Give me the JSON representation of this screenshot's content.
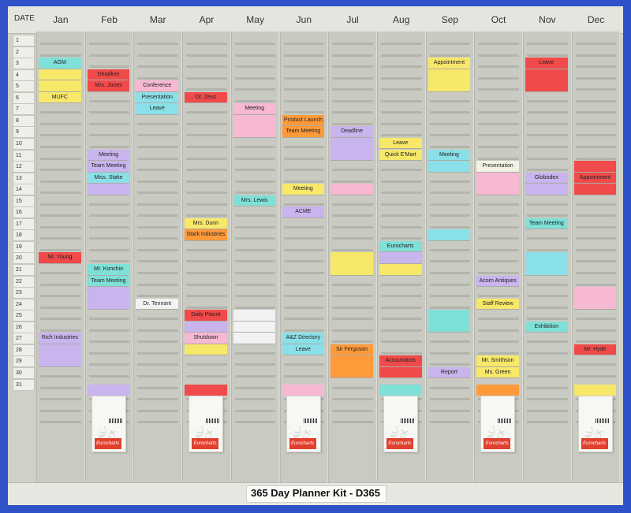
{
  "header": {
    "date_label": "DATE",
    "months": [
      "Jan",
      "Feb",
      "Mar",
      "Apr",
      "May",
      "Jun",
      "Jul",
      "Aug",
      "Sep",
      "Oct",
      "Nov",
      "Dec"
    ]
  },
  "days": [
    "1",
    "2",
    "3",
    "4",
    "5",
    "6",
    "7",
    "8",
    "9",
    "10",
    "11",
    "12",
    "13",
    "14",
    "15",
    "16",
    "17",
    "18",
    "19",
    "20",
    "21",
    "22",
    "23",
    "24",
    "25",
    "26",
    "27",
    "28",
    "29",
    "30",
    "31"
  ],
  "cards": [
    {
      "m": 0,
      "d": 3,
      "text": "AGM",
      "color": "#7fe0d8"
    },
    {
      "m": 0,
      "d": 6,
      "text": "MUFC",
      "color": "#f8e86a"
    },
    {
      "m": 0,
      "d": 20,
      "text": "Mr. Young",
      "color": "#f04a4a"
    },
    {
      "m": 0,
      "d": 27,
      "text": "Rich Industries",
      "color": "#c9b4ee"
    },
    {
      "m": 1,
      "d": 4,
      "text": "Deadline",
      "color": "#f04a4a"
    },
    {
      "m": 1,
      "d": 5,
      "text": "Mrs. Jones",
      "color": "#f04a4a"
    },
    {
      "m": 1,
      "d": 11,
      "text": "Meeting",
      "color": "#c9b4ee"
    },
    {
      "m": 1,
      "d": 12,
      "text": "Team Meeting",
      "color": "#c9b4ee"
    },
    {
      "m": 1,
      "d": 13,
      "text": "Miss. Stake",
      "color": "#8ae0e8"
    },
    {
      "m": 1,
      "d": 21,
      "text": "Mr. Konchio",
      "color": "#7fe0d8"
    },
    {
      "m": 1,
      "d": 22,
      "text": "Team Meeting",
      "color": "#7fe0d8"
    },
    {
      "m": 2,
      "d": 5,
      "text": "Conference",
      "color": "#f7b8d4"
    },
    {
      "m": 2,
      "d": 6,
      "text": "Presentation",
      "color": "#8ae0e8"
    },
    {
      "m": 2,
      "d": 7,
      "text": "Leave",
      "color": "#8ae0e8"
    },
    {
      "m": 2,
      "d": 24,
      "text": "Dr. Tennant",
      "color": "#f2f2f2"
    },
    {
      "m": 3,
      "d": 6,
      "text": "Dr. Zeus",
      "color": "#f04a4a"
    },
    {
      "m": 3,
      "d": 17,
      "text": "Mrs. Dunn",
      "color": "#f8e86a"
    },
    {
      "m": 3,
      "d": 18,
      "text": "Stark Industries",
      "color": "#ff9a3a"
    },
    {
      "m": 3,
      "d": 25,
      "text": "Daily Planet",
      "color": "#f04a4a"
    },
    {
      "m": 3,
      "d": 27,
      "text": "Shutdown",
      "color": "#f7b8d4"
    },
    {
      "m": 4,
      "d": 7,
      "text": "Meeting",
      "color": "#f7b8d4"
    },
    {
      "m": 4,
      "d": 15,
      "text": "Mrs. Lewis",
      "color": "#7fe0d8"
    },
    {
      "m": 5,
      "d": 8,
      "text": "Product Launch",
      "color": "#ff9a3a"
    },
    {
      "m": 5,
      "d": 9,
      "text": "Team Meeting",
      "color": "#ff9a3a"
    },
    {
      "m": 5,
      "d": 14,
      "text": "Meeting",
      "color": "#f8e86a"
    },
    {
      "m": 5,
      "d": 16,
      "text": "ACME",
      "color": "#c9b4ee"
    },
    {
      "m": 5,
      "d": 27,
      "text": "A&Z Directory",
      "color": "#8ae0e8"
    },
    {
      "m": 5,
      "d": 28,
      "text": "Leave",
      "color": "#8ae0e8"
    },
    {
      "m": 6,
      "d": 9,
      "text": "Deadline",
      "color": "#c9b4ee"
    },
    {
      "m": 6,
      "d": 28,
      "text": "Sir Ferguson",
      "color": "#ff9a3a"
    },
    {
      "m": 7,
      "d": 10,
      "text": "Leave",
      "color": "#f8e86a"
    },
    {
      "m": 7,
      "d": 11,
      "text": "Quick E'Mart",
      "color": "#f8e86a"
    },
    {
      "m": 7,
      "d": 19,
      "text": "Eurocharts",
      "color": "#7fe0d8"
    },
    {
      "m": 7,
      "d": 29,
      "text": "Accountants",
      "color": "#f04a4a"
    },
    {
      "m": 8,
      "d": 3,
      "text": "Appointment",
      "color": "#f8e86a"
    },
    {
      "m": 8,
      "d": 11,
      "text": "Meeting",
      "color": "#8ae0e8"
    },
    {
      "m": 8,
      "d": 30,
      "text": "Report",
      "color": "#c9b4ee"
    },
    {
      "m": 9,
      "d": 12,
      "text": "Presentation",
      "color": "#f2f2e4"
    },
    {
      "m": 9,
      "d": 22,
      "text": "Acorn Antiques",
      "color": "#c9b4ee"
    },
    {
      "m": 9,
      "d": 24,
      "text": "Staff Review",
      "color": "#f8e86a"
    },
    {
      "m": 9,
      "d": 29,
      "text": "Mr. Smithson",
      "color": "#f8e86a"
    },
    {
      "m": 9,
      "d": 30,
      "text": "Ms. Green",
      "color": "#f8e86a"
    },
    {
      "m": 10,
      "d": 3,
      "text": "Leave",
      "color": "#f04a4a"
    },
    {
      "m": 10,
      "d": 13,
      "text": "Globodex",
      "color": "#c9b4ee"
    },
    {
      "m": 10,
      "d": 17,
      "text": "Team Meeting",
      "color": "#7fe0d8"
    },
    {
      "m": 10,
      "d": 26,
      "text": "Exhibition",
      "color": "#7fe0d8"
    },
    {
      "m": 11,
      "d": 13,
      "text": "Appointment",
      "color": "#f04a4a"
    },
    {
      "m": 11,
      "d": 28,
      "text": "Mr. Hyde",
      "color": "#f04a4a"
    }
  ],
  "blank_cards": [
    {
      "m": 0,
      "d": 4,
      "span": 1,
      "color": "#f8e86a"
    },
    {
      "m": 0,
      "d": 5,
      "span": 1,
      "color": "#f8e86a"
    },
    {
      "m": 0,
      "d": 28,
      "span": 2,
      "color": "#c9b4ee"
    },
    {
      "m": 1,
      "d": 14,
      "span": 1,
      "color": "#c9b4ee"
    },
    {
      "m": 1,
      "d": 23,
      "span": 2,
      "color": "#c9b4ee"
    },
    {
      "m": 3,
      "d": 26,
      "span": 1,
      "color": "#c9b4ee"
    },
    {
      "m": 3,
      "d": 28,
      "span": 1,
      "color": "#f8e86a"
    },
    {
      "m": 4,
      "d": 8,
      "span": 2,
      "color": "#f7b8d4"
    },
    {
      "m": 4,
      "d": 25,
      "span": 1,
      "color": "#f2f2f2"
    },
    {
      "m": 4,
      "d": 26,
      "span": 1,
      "color": "#f2f2f2"
    },
    {
      "m": 4,
      "d": 27,
      "span": 1,
      "color": "#f2f2f2"
    },
    {
      "m": 6,
      "d": 10,
      "span": 2,
      "color": "#c9b4ee"
    },
    {
      "m": 6,
      "d": 14,
      "span": 1,
      "color": "#f7b8d4"
    },
    {
      "m": 6,
      "d": 20,
      "span": 2,
      "color": "#f8e86a"
    },
    {
      "m": 6,
      "d": 29,
      "span": 2,
      "color": "#ff9a3a"
    },
    {
      "m": 7,
      "d": 20,
      "span": 1,
      "color": "#c9b4ee"
    },
    {
      "m": 7,
      "d": 21,
      "span": 1,
      "color": "#f8e86a"
    },
    {
      "m": 7,
      "d": 30,
      "span": 1,
      "color": "#f04a4a"
    },
    {
      "m": 8,
      "d": 4,
      "span": 2,
      "color": "#f8e86a"
    },
    {
      "m": 8,
      "d": 12,
      "span": 1,
      "color": "#8ae0e8"
    },
    {
      "m": 8,
      "d": 18,
      "span": 1,
      "color": "#8ae0e8"
    },
    {
      "m": 8,
      "d": 25,
      "span": 2,
      "color": "#7fe0d8"
    },
    {
      "m": 9,
      "d": 13,
      "span": 2,
      "color": "#f7b8d4"
    },
    {
      "m": 10,
      "d": 4,
      "span": 2,
      "color": "#f04a4a"
    },
    {
      "m": 10,
      "d": 14,
      "span": 1,
      "color": "#c9b4ee"
    },
    {
      "m": 10,
      "d": 20,
      "span": 2,
      "color": "#8ae0e8"
    },
    {
      "m": 11,
      "d": 12,
      "span": 1,
      "color": "#f04a4a"
    },
    {
      "m": 11,
      "d": 14,
      "span": 1,
      "color": "#f04a4a"
    },
    {
      "m": 11,
      "d": 23,
      "span": 2,
      "color": "#f7b8d4"
    }
  ],
  "card_packs": [
    {
      "m": 1,
      "color": "#c9b4ee",
      "brand": "VAL-REX",
      "label": "Eurocharts"
    },
    {
      "m": 3,
      "color": "#f04a4a",
      "brand": "VAL-REX",
      "label": "Eurocharts"
    },
    {
      "m": 5,
      "color": "#f7b8d4",
      "brand": "VAL-REX",
      "label": "Eurocharts"
    },
    {
      "m": 7,
      "color": "#7fe0d8",
      "brand": "VAL-REX",
      "label": "Eurocharts"
    },
    {
      "m": 9,
      "color": "#ff9a3a",
      "brand": "VAL-REX",
      "label": "Eurocharts"
    },
    {
      "m": 11,
      "color": "#f8e86a",
      "brand": "VAL-REX",
      "label": "Eurocharts"
    }
  ],
  "footer": {
    "title": "365 Day Planner Kit - D365"
  }
}
